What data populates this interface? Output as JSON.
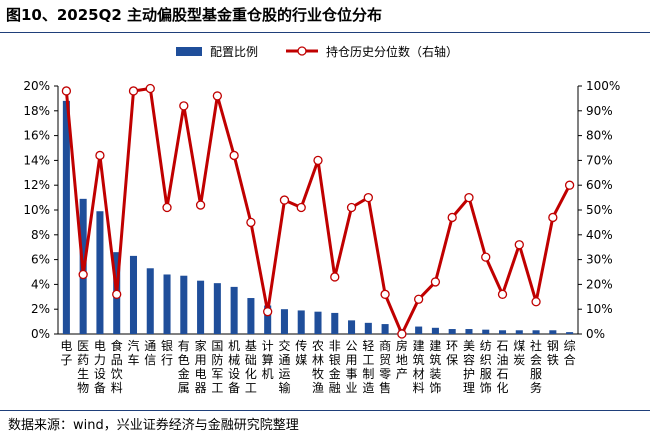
{
  "title": "图10、2025Q2 主动偏股型基金重仓股的行业仓位分布",
  "source": "数据来源：wind，兴业证券经济与金融研究院整理",
  "chart_data": {
    "type": "bar+line",
    "categories": [
      "电子",
      "医药生物",
      "电力设备",
      "食品饮料",
      "汽车",
      "通信",
      "银行",
      "有色金属",
      "家用电器",
      "国防军工",
      "机械设备",
      "基础化工",
      "计算机",
      "交通运输",
      "传媒",
      "农林牧渔",
      "非银金融",
      "公用事业",
      "轻工制造",
      "商贸零售",
      "房地产",
      "建筑材料",
      "建筑装饰",
      "环保",
      "美容护理",
      "纺织服饰",
      "石油石化",
      "煤炭",
      "社会服务",
      "钢铁",
      "综合"
    ],
    "series": [
      {
        "name": "配置比例",
        "axis": "left",
        "color": "#1f4e9a",
        "values": [
          18.8,
          10.9,
          9.9,
          6.6,
          6.3,
          5.3,
          4.8,
          4.7,
          4.3,
          4.1,
          3.8,
          2.9,
          2.3,
          2.0,
          1.9,
          1.8,
          1.7,
          1.1,
          0.9,
          0.8,
          0.4,
          0.6,
          0.5,
          0.4,
          0.4,
          0.35,
          0.3,
          0.3,
          0.3,
          0.3,
          0.15
        ]
      },
      {
        "name": "持仓历史分位数（右轴）",
        "axis": "right",
        "color": "#c00000",
        "values": [
          98,
          24,
          72,
          16,
          98,
          99,
          51,
          92,
          52,
          96,
          72,
          45,
          9,
          54,
          51,
          70,
          23,
          51,
          55,
          16,
          0,
          14,
          21,
          47,
          55,
          31,
          16,
          36,
          13,
          47,
          60
        ]
      }
    ],
    "y_left": {
      "min": 0,
      "max": 20,
      "step": 2,
      "ticks": [
        "0%",
        "2%",
        "4%",
        "6%",
        "8%",
        "10%",
        "12%",
        "14%",
        "16%",
        "18%",
        "20%"
      ]
    },
    "y_right": {
      "min": 0,
      "max": 100,
      "step": 10,
      "ticks": [
        "0%",
        "10%",
        "20%",
        "30%",
        "40%",
        "50%",
        "60%",
        "70%",
        "80%",
        "90%",
        "100%"
      ]
    },
    "grid": false,
    "legend": "top-center"
  }
}
